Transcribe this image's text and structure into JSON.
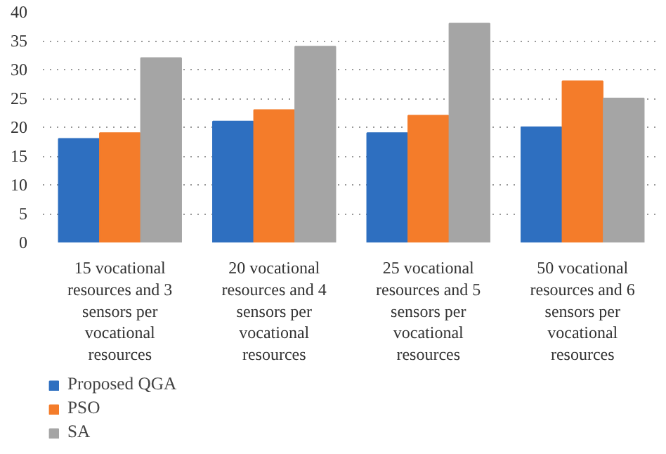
{
  "chart_data": {
    "type": "bar",
    "categories": [
      "15 vocational resources and 3 sensors per vocational resources",
      "20 vocational resources and 4 sensors per vocational resources",
      "25 vocational resources and 5 sensors per vocational resources",
      "50 vocational resources and 6 sensors per vocational resources"
    ],
    "series": [
      {
        "name": "Proposed QGA",
        "color": "#2e6fc0",
        "values": [
          18,
          21,
          19,
          20
        ]
      },
      {
        "name": "PSO",
        "color": "#f47c2a",
        "values": [
          19,
          23,
          22,
          28
        ]
      },
      {
        "name": "SA",
        "color": "#a5a5a5",
        "values": [
          32,
          34,
          38,
          25
        ]
      }
    ],
    "ylim": [
      0,
      40
    ],
    "yticks": [
      0,
      5,
      10,
      15,
      20,
      25,
      30,
      35,
      40
    ],
    "grid": "y",
    "legend": "bottom left"
  }
}
